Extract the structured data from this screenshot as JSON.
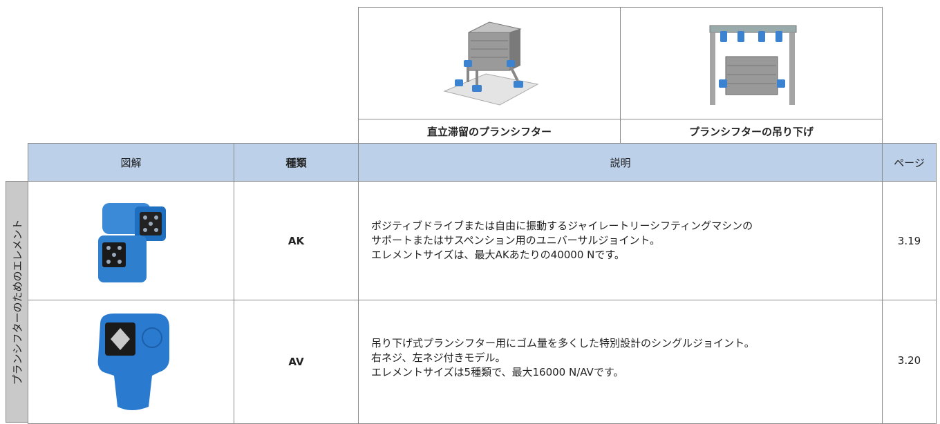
{
  "header_images": [
    "直立滞留のプランシフター",
    "プランシフターの吊り下げ"
  ],
  "table": {
    "headers": [
      "図解",
      "種類",
      "説明",
      "ページ"
    ],
    "side_label": "プランシフターのためのエレメント",
    "rows": [
      {
        "type": "AK",
        "description": [
          "ポジティブドライブまたは自由に振動するジャイレートリーシフティングマシンの",
          "サポートまたはサスペンション用のユニバーサルジョイント。",
          "エレメントサイズは、最大AKあたりの40000 Nです。"
        ],
        "page": "3.19"
      },
      {
        "type": "AV",
        "description": [
          "吊り下げ式プランシフター用にゴム量を多くした特別設計のシングルジョイント。",
          "右ネジ、左ネジ付きモデル。",
          "エレメントサイズは5種類で、最大16000 N/AVです。"
        ],
        "page": "3.20"
      }
    ]
  }
}
